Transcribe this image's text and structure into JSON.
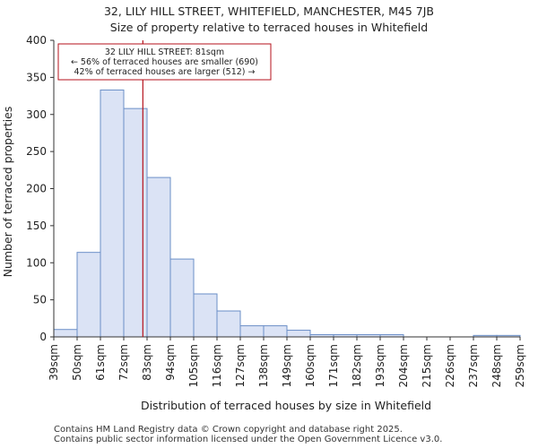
{
  "chart_data": {
    "type": "bar",
    "title": "32, LILY HILL STREET, WHITEFIELD, MANCHESTER, M45 7JB",
    "subtitle": "Size of property relative to terraced houses in Whitefield",
    "xlabel": "Distribution of terraced houses by size in Whitefield",
    "ylabel": "Number of terraced properties",
    "x_tick_labels": [
      "39sqm",
      "50sqm",
      "61sqm",
      "72sqm",
      "83sqm",
      "94sqm",
      "105sqm",
      "116sqm",
      "127sqm",
      "138sqm",
      "149sqm",
      "160sqm",
      "171sqm",
      "182sqm",
      "193sqm",
      "204sqm",
      "215sqm",
      "226sqm",
      "237sqm",
      "248sqm",
      "259sqm"
    ],
    "values": [
      10,
      114,
      333,
      308,
      215,
      105,
      58,
      35,
      15,
      15,
      9,
      3,
      3,
      3,
      3,
      0,
      0,
      0,
      2,
      2
    ],
    "ylim": [
      0,
      400
    ],
    "y_ticks": [
      0,
      50,
      100,
      150,
      200,
      250,
      300,
      350,
      400
    ],
    "bar_color": "#dbe3f5",
    "bar_edge_color": "#6b8fc7",
    "marker": {
      "bin_position": 3.82,
      "color": "#b5121b"
    },
    "annotation": {
      "line1": "32 LILY HILL STREET: 81sqm",
      "line2": "← 56% of terraced houses are smaller (690)",
      "line3": "42% of terraced houses are larger (512) →",
      "border_color": "#b5121b"
    }
  },
  "footer": {
    "line1": "Contains HM Land Registry data © Crown copyright and database right 2025.",
    "line2": "Contains public sector information licensed under the Open Government Licence v3.0."
  }
}
